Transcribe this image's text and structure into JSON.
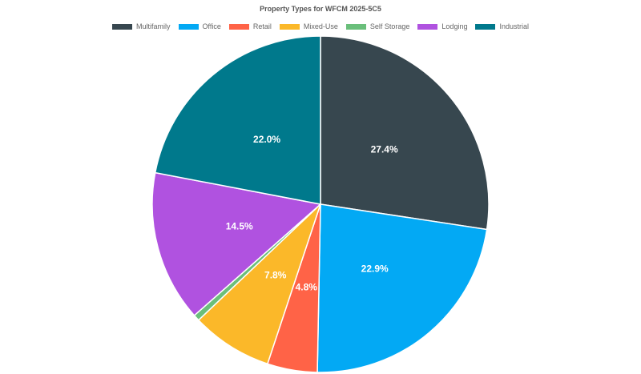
{
  "chart_data": {
    "type": "pie",
    "title": "Property Types for WFCM 2025-5C5",
    "legend_position": "top",
    "categories": [
      "Multifamily",
      "Office",
      "Retail",
      "Mixed-Use",
      "Self Storage",
      "Lodging",
      "Industrial"
    ],
    "values": [
      27.4,
      22.9,
      4.8,
      7.8,
      0.6,
      14.5,
      22.0
    ],
    "labels": [
      "27.4%",
      "22.9%",
      "4.8%",
      "7.8%",
      "",
      "14.5%",
      "22.0%"
    ],
    "colors": [
      "#37474f",
      "#03a9f4",
      "#ff6347",
      "#fbb829",
      "#6abf7b",
      "#b052e0",
      "#00798c"
    ]
  }
}
